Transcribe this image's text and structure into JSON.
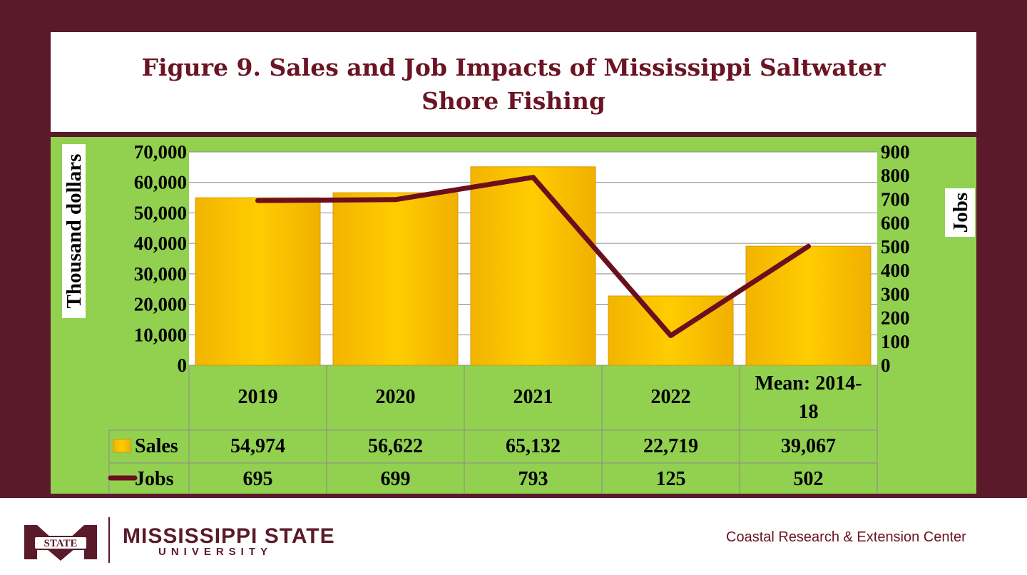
{
  "title": "Figure 9. Sales and Job Impacts of Mississippi Saltwater Shore Fishing",
  "title_lines": [
    "Figure 9. Sales and Job Impacts of Mississippi Saltwater",
    "Shore Fishing"
  ],
  "footer": {
    "university_name": "MISSISSIPPI STATE",
    "university_sub": "UNIVERSITY",
    "logo_text": "STATE",
    "center_name": "Coastal Research & Extension Center"
  },
  "colors": {
    "frame": "#5b1a2a",
    "panel": "#92d050",
    "bar": "#ffc000",
    "line": "#6b0f1f",
    "title": "#6b1424"
  },
  "chart_data": {
    "type": "bar",
    "title": "Figure 9. Sales and Job Impacts of Mississippi Saltwater Shore Fishing",
    "categories": [
      "2019",
      "2020",
      "2021",
      "2022",
      "Mean: 2014-18"
    ],
    "category_lines": [
      [
        "2019"
      ],
      [
        "2020"
      ],
      [
        "2021"
      ],
      [
        "2022"
      ],
      [
        "Mean: 2014-",
        "18"
      ]
    ],
    "series": [
      {
        "name": "Sales",
        "type": "bar",
        "axis": "left",
        "values": [
          54974,
          56622,
          65132,
          22719,
          39067
        ],
        "labels": [
          "54,974",
          "56,622",
          "65,132",
          "22,719",
          "39,067"
        ]
      },
      {
        "name": "Jobs",
        "type": "line",
        "axis": "right",
        "values": [
          695,
          699,
          793,
          125,
          502
        ],
        "labels": [
          "695",
          "699",
          "793",
          "125",
          "502"
        ]
      }
    ],
    "ylabel": "Thousand dollars",
    "y2label": "Jobs",
    "ylim": [
      0,
      70000
    ],
    "y2lim": [
      0,
      900
    ],
    "yticks": [
      "0",
      "10,000",
      "20,000",
      "30,000",
      "40,000",
      "50,000",
      "60,000",
      "70,000"
    ],
    "y2ticks": [
      "0",
      "100",
      "200",
      "300",
      "400",
      "500",
      "600",
      "700",
      "800",
      "900"
    ],
    "grid": true,
    "legend": "data-table"
  }
}
